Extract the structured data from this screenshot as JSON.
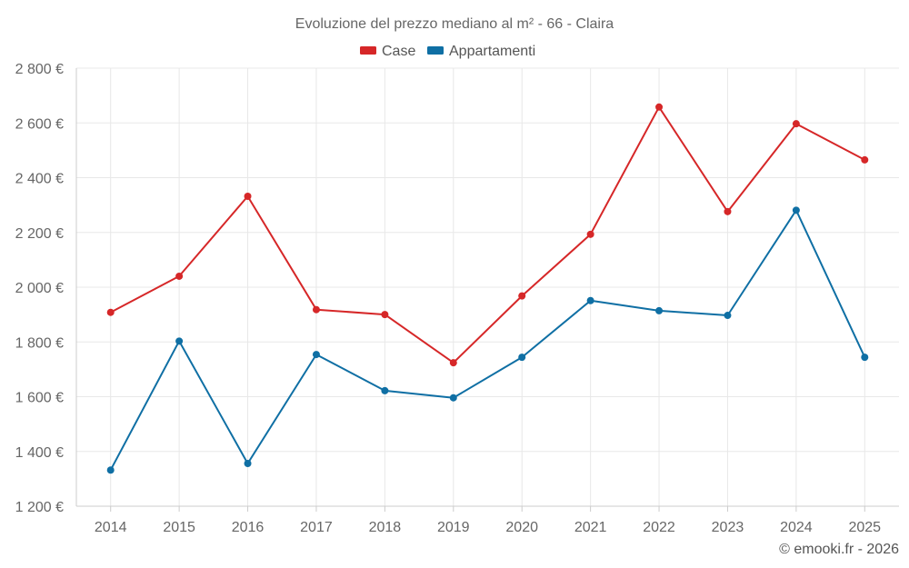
{
  "chart_data": {
    "type": "line",
    "title": "Evoluzione del prezzo mediano al m² - 66 - Claira",
    "categories": [
      "2014",
      "2015",
      "2016",
      "2017",
      "2018",
      "2019",
      "2020",
      "2021",
      "2022",
      "2023",
      "2024",
      "2025"
    ],
    "series": [
      {
        "name": "Case",
        "color": "#d62728",
        "values": [
          1908,
          2040,
          2332,
          1918,
          1900,
          1724,
          1968,
          2193,
          2658,
          2276,
          2597,
          2465
        ]
      },
      {
        "name": "Appartamenti",
        "color": "#0f6fa4",
        "values": [
          1332,
          1803,
          1356,
          1754,
          1622,
          1596,
          1744,
          1951,
          1914,
          1897,
          2281,
          1744
        ]
      }
    ],
    "y_ticks": [
      1200,
      1400,
      1600,
      1800,
      2000,
      2200,
      2400,
      2600,
      2800
    ],
    "y_tick_labels": [
      "1 200 €",
      "1 400 €",
      "1 600 €",
      "1 800 €",
      "2 000 €",
      "2 200 €",
      "2 400 €",
      "2 600 €",
      "2 800 €"
    ],
    "ylim": [
      1200,
      2800
    ],
    "xlabel": "",
    "ylabel": "",
    "grid": true,
    "legend_position": "top-center"
  },
  "credit": "© emooki.fr - 2026"
}
